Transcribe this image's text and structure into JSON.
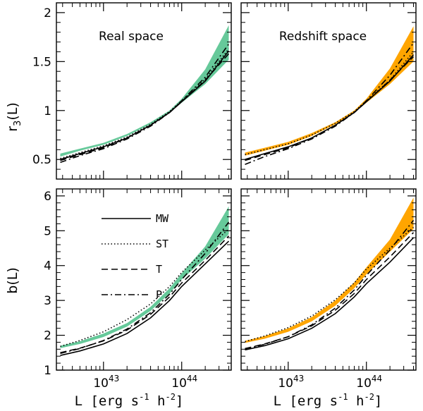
{
  "chart_data": [
    {
      "type": "line",
      "panel": "top-left",
      "title": "Real space",
      "ylabel": "r_3(L)",
      "xlabel": "",
      "xscale": "log",
      "xlim": [
        2.5e+42,
        4.3e+44
      ],
      "ylim": [
        0.3,
        2.1
      ],
      "yticks": [
        0.5,
        1,
        1.5,
        2
      ],
      "ytick_labels": [
        "0.5",
        "1",
        "1.5",
        "2"
      ],
      "band_color": "#66c99a",
      "x": [
        2.8e+42,
        5e+42,
        1e+43,
        2e+43,
        4e+43,
        7e+43,
        1e+44,
        2e+44,
        4e+44
      ],
      "band": {
        "lower": [
          0.53,
          0.59,
          0.65,
          0.74,
          0.86,
          0.98,
          1.08,
          1.27,
          1.52
        ],
        "upper": [
          0.56,
          0.61,
          0.67,
          0.76,
          0.88,
          1.0,
          1.12,
          1.42,
          1.87
        ]
      },
      "series": [
        {
          "name": "MW",
          "style": "solid",
          "values": [
            0.5,
            0.56,
            0.63,
            0.72,
            0.85,
            0.98,
            1.09,
            1.3,
            1.61
          ]
        },
        {
          "name": "ST",
          "style": "dotted",
          "values": [
            0.51,
            0.57,
            0.64,
            0.73,
            0.86,
            0.99,
            1.1,
            1.32,
            1.63
          ]
        },
        {
          "name": "T",
          "style": "dashed",
          "values": [
            0.49,
            0.55,
            0.62,
            0.72,
            0.85,
            0.98,
            1.09,
            1.31,
            1.58
          ]
        },
        {
          "name": "P",
          "style": "dashdot",
          "values": [
            0.47,
            0.54,
            0.61,
            0.71,
            0.84,
            0.98,
            1.1,
            1.34,
            1.68
          ]
        }
      ]
    },
    {
      "type": "line",
      "panel": "top-right",
      "title": "Redshift space",
      "ylabel": "",
      "xlabel": "",
      "xscale": "log",
      "xlim": [
        2.5e+42,
        4.3e+44
      ],
      "ylim": [
        0.3,
        2.1
      ],
      "yticks": [
        0.5,
        1,
        1.5,
        2
      ],
      "ytick_labels": [
        "0.5",
        "1",
        "1.5",
        "2"
      ],
      "band_color": "#ffa500",
      "x": [
        2.8e+42,
        5e+42,
        1e+43,
        2e+43,
        4e+43,
        7e+43,
        1e+44,
        2e+44,
        4e+44
      ],
      "band": {
        "lower": [
          0.54,
          0.59,
          0.65,
          0.74,
          0.86,
          0.98,
          1.08,
          1.27,
          1.5
        ],
        "upper": [
          0.57,
          0.62,
          0.68,
          0.77,
          0.88,
          1.0,
          1.12,
          1.43,
          1.86
        ]
      },
      "series": [
        {
          "name": "MW",
          "style": "solid",
          "values": [
            0.5,
            0.56,
            0.63,
            0.72,
            0.85,
            0.98,
            1.09,
            1.3,
            1.57
          ]
        },
        {
          "name": "ST",
          "style": "dotted",
          "values": [
            0.55,
            0.6,
            0.66,
            0.75,
            0.87,
            0.99,
            1.1,
            1.31,
            1.6
          ]
        },
        {
          "name": "T",
          "style": "dashed",
          "values": [
            0.49,
            0.55,
            0.62,
            0.72,
            0.85,
            0.98,
            1.09,
            1.31,
            1.55
          ]
        },
        {
          "name": "P",
          "style": "dashdot",
          "values": [
            0.45,
            0.53,
            0.61,
            0.71,
            0.84,
            0.98,
            1.1,
            1.36,
            1.69
          ]
        }
      ]
    },
    {
      "type": "line",
      "panel": "bottom-left",
      "title": "",
      "ylabel": "b(L)",
      "xlabel": "L [erg s-1 h-2]",
      "xscale": "log",
      "xlim": [
        2.5e+42,
        4.3e+44
      ],
      "ylim": [
        1,
        6.2
      ],
      "yticks": [
        1,
        2,
        3,
        4,
        5,
        6
      ],
      "ytick_labels": [
        "1",
        "2",
        "3",
        "4",
        "5",
        "6"
      ],
      "xtick_labels": [
        "10",
        "43",
        "10",
        "44"
      ],
      "band_color": "#66c99a",
      "x": [
        2.8e+42,
        5e+42,
        1e+43,
        2e+43,
        4e+43,
        7e+43,
        1e+44,
        2e+44,
        4e+44
      ],
      "band": {
        "lower": [
          1.63,
          1.75,
          1.95,
          2.25,
          2.7,
          3.2,
          3.6,
          4.2,
          4.9
        ],
        "upper": [
          1.7,
          1.83,
          2.05,
          2.35,
          2.82,
          3.35,
          3.78,
          4.55,
          5.7
        ]
      },
      "series": [
        {
          "name": "MW",
          "style": "solid",
          "values": [
            1.42,
            1.55,
            1.75,
            2.05,
            2.5,
            3.0,
            3.4,
            4.05,
            4.7
          ]
        },
        {
          "name": "ST",
          "style": "dotted",
          "values": [
            1.68,
            1.85,
            2.1,
            2.45,
            2.9,
            3.4,
            3.8,
            4.45,
            5.05
          ]
        },
        {
          "name": "T",
          "style": "dashed",
          "values": [
            1.5,
            1.63,
            1.84,
            2.15,
            2.6,
            3.1,
            3.5,
            4.15,
            4.85
          ]
        },
        {
          "name": "P",
          "style": "dashdot",
          "values": [
            1.48,
            1.62,
            1.85,
            2.18,
            2.65,
            3.18,
            3.6,
            4.35,
            5.25
          ]
        }
      ],
      "legend": {
        "entries": [
          "MW",
          "ST",
          "T",
          "P"
        ],
        "placement": "upper-left"
      }
    },
    {
      "type": "line",
      "panel": "bottom-right",
      "title": "",
      "ylabel": "",
      "xlabel": "L [erg s-1 h-2]",
      "xscale": "log",
      "xlim": [
        2.5e+42,
        4.3e+44
      ],
      "ylim": [
        1,
        6.2
      ],
      "yticks": [
        1,
        2,
        3,
        4,
        5,
        6
      ],
      "ytick_labels": [
        "1",
        "2",
        "3",
        "4",
        "5",
        "6"
      ],
      "xtick_labels": [
        "10",
        "43",
        "10",
        "44"
      ],
      "band_color": "#ffa500",
      "x": [
        2.8e+42,
        5e+42,
        1e+43,
        2e+43,
        4e+43,
        7e+43,
        1e+44,
        2e+44,
        4e+44
      ],
      "band": {
        "lower": [
          1.78,
          1.9,
          2.1,
          2.4,
          2.85,
          3.35,
          3.75,
          4.4,
          5.05
        ],
        "upper": [
          1.84,
          1.98,
          2.2,
          2.52,
          3.0,
          3.52,
          3.95,
          4.75,
          5.95
        ]
      },
      "series": [
        {
          "name": "MW",
          "style": "solid",
          "values": [
            1.58,
            1.7,
            1.9,
            2.2,
            2.62,
            3.1,
            3.48,
            4.1,
            4.8
          ]
        },
        {
          "name": "ST",
          "style": "dotted",
          "values": [
            1.82,
            1.98,
            2.22,
            2.55,
            3.02,
            3.5,
            3.9,
            4.5,
            5.1
          ]
        },
        {
          "name": "T",
          "style": "dashed",
          "values": [
            1.62,
            1.75,
            1.96,
            2.27,
            2.72,
            3.2,
            3.6,
            4.25,
            4.95
          ]
        },
        {
          "name": "P",
          "style": "dashdot",
          "values": [
            1.6,
            1.74,
            1.96,
            2.3,
            2.78,
            3.3,
            3.72,
            4.45,
            5.3
          ]
        }
      ]
    }
  ]
}
